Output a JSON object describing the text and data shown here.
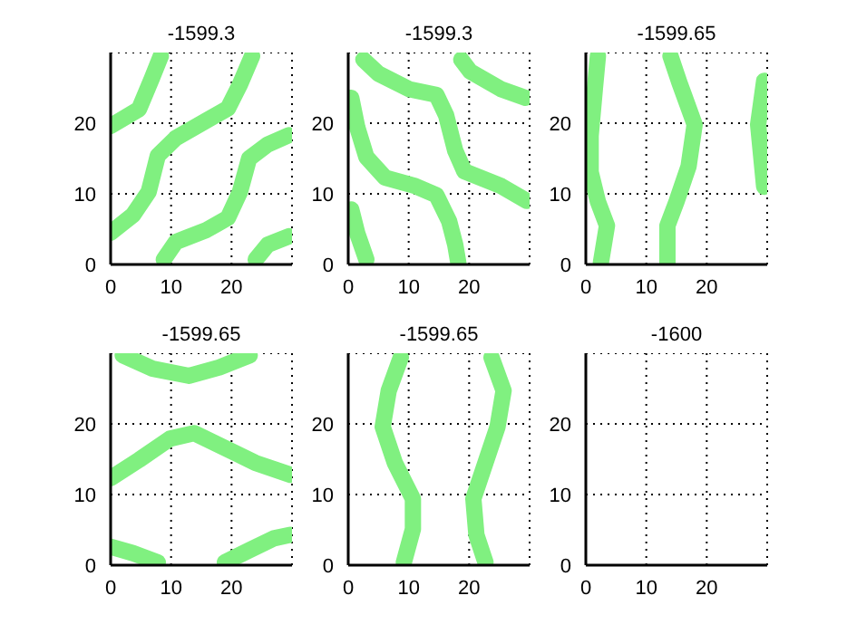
{
  "chart_data": [
    {
      "type": "line",
      "title": "-1599.3",
      "xlim": [
        0,
        30
      ],
      "ylim": [
        0,
        30
      ],
      "xticks": [
        0,
        10,
        20
      ],
      "yticks": [
        0,
        10,
        20
      ],
      "grid": true,
      "series": [
        {
          "color": "#80f080",
          "x": [
            0,
            4.7,
            6.8,
            8.3
          ],
          "values": [
            19.6,
            22,
            26.3,
            29.5
          ]
        },
        {
          "color": "#80f080",
          "x": [
            0,
            3.7,
            6.3,
            7.8,
            10.8,
            15.9,
            19.4,
            21.4,
            23.4
          ],
          "values": [
            4.5,
            7,
            10.3,
            15.4,
            17.9,
            20.4,
            22.1,
            25.5,
            29.5
          ]
        },
        {
          "color": "#80f080",
          "x": [
            8.8,
            10.8,
            15.9,
            19.4,
            21.4,
            22.9,
            26,
            29.5
          ],
          "values": [
            0.7,
            3.2,
            4.9,
            6.6,
            10.3,
            15,
            17,
            18.3
          ]
        },
        {
          "color": "#80f080",
          "x": [
            24,
            26,
            29.5
          ],
          "values": [
            0.7,
            2.8,
            4
          ]
        }
      ]
    },
    {
      "type": "line",
      "title": "-1599.3",
      "xlim": [
        0,
        30
      ],
      "ylim": [
        0,
        30
      ],
      "xticks": [
        0,
        10,
        20
      ],
      "yticks": [
        0,
        10,
        20
      ],
      "grid": true,
      "series": [
        {
          "color": "#80f080",
          "x": [
            2.5,
            5,
            10.1,
            14.6,
            16.2,
            17.7,
            19.2,
            25.3,
            29.5
          ],
          "values": [
            29,
            27,
            24.8,
            24,
            21.1,
            16.1,
            13.2,
            11.1,
            9
          ]
        },
        {
          "color": "#80f080",
          "x": [
            0.5,
            1.5,
            3,
            6.1,
            11.1,
            14.6,
            16.7,
            17.7,
            18.2
          ],
          "values": [
            23.6,
            19.4,
            15.2,
            12.3,
            11.1,
            9.8,
            6.1,
            2.8,
            0.3
          ]
        },
        {
          "color": "#80f080",
          "x": [
            0.5,
            1.5,
            3
          ],
          "values": [
            7.8,
            4.4,
            0.7
          ]
        },
        {
          "color": "#80f080",
          "x": [
            18.7,
            20.2,
            25.3,
            29.3
          ],
          "values": [
            29,
            27.3,
            24.8,
            23.6
          ]
        }
      ]
    },
    {
      "type": "line",
      "title": "-1599.65",
      "xlim": [
        0,
        30
      ],
      "ylim": [
        0,
        30
      ],
      "xticks": [
        0,
        10,
        20
      ],
      "yticks": [
        0,
        10,
        20
      ],
      "grid": true,
      "series": [
        {
          "color": "#80f080",
          "x": [
            2,
            1.5,
            0.8,
            0.8,
            2,
            3.5,
            2.5
          ],
          "values": [
            29.5,
            24.9,
            18.2,
            13.1,
            8.9,
            5.5,
            0.3
          ]
        },
        {
          "color": "#80f080",
          "x": [
            14,
            15.5,
            18,
            17,
            15,
            13.5,
            13.5
          ],
          "values": [
            29.5,
            25.7,
            19.8,
            13.9,
            8.9,
            5.5,
            0.3
          ]
        },
        {
          "color": "#80f080",
          "x": [
            29.5,
            28.5,
            29.5
          ],
          "values": [
            26,
            19.8,
            11
          ]
        }
      ]
    },
    {
      "type": "line",
      "title": "-1599.65",
      "xlim": [
        0,
        30
      ],
      "ylim": [
        0,
        30
      ],
      "xticks": [
        0,
        10,
        20
      ],
      "yticks": [
        0,
        10,
        20
      ],
      "grid": true,
      "series": [
        {
          "color": "#80f080",
          "x": [
            2,
            7,
            13,
            18,
            23
          ],
          "values": [
            29.7,
            27.8,
            26.8,
            28,
            29.7
          ]
        },
        {
          "color": "#80f080",
          "x": [
            0,
            4.7,
            9.8,
            13.8,
            18.9,
            23.9,
            29.7
          ],
          "values": [
            12.3,
            14.9,
            17.9,
            18.7,
            16.6,
            14.5,
            12.8
          ]
        },
        {
          "color": "#80f080",
          "x": [
            0,
            3.7,
            7.8
          ],
          "values": [
            2.6,
            1.7,
            0.4
          ]
        },
        {
          "color": "#80f080",
          "x": [
            18.9,
            22.9,
            27,
            29.7
          ],
          "values": [
            0.4,
            2.1,
            3.8,
            4.3
          ]
        }
      ]
    },
    {
      "type": "line",
      "title": "-1599.65",
      "xlim": [
        0,
        30
      ],
      "ylim": [
        0,
        30
      ],
      "xticks": [
        0,
        10,
        20
      ],
      "yticks": [
        0,
        10,
        20
      ],
      "grid": true,
      "series": [
        {
          "color": "#80f080",
          "x": [
            8.7,
            6.7,
            5.7,
            7.7,
            10.7,
            10.7,
            9.2
          ],
          "values": [
            29.4,
            24.7,
            19.6,
            14.5,
            9.4,
            5.1,
            0.4
          ]
        },
        {
          "color": "#80f080",
          "x": [
            23.7,
            25.7,
            24.7,
            22.7,
            20.7,
            21.2,
            22.7
          ],
          "values": [
            29.4,
            24.7,
            19.6,
            14.5,
            9.4,
            4.3,
            0.4
          ]
        }
      ]
    },
    {
      "type": "line",
      "title": "-1600",
      "xlim": [
        0,
        30
      ],
      "ylim": [
        0,
        30
      ],
      "xticks": [
        0,
        10,
        20
      ],
      "yticks": [
        0,
        10,
        20
      ],
      "grid": true
    }
  ]
}
